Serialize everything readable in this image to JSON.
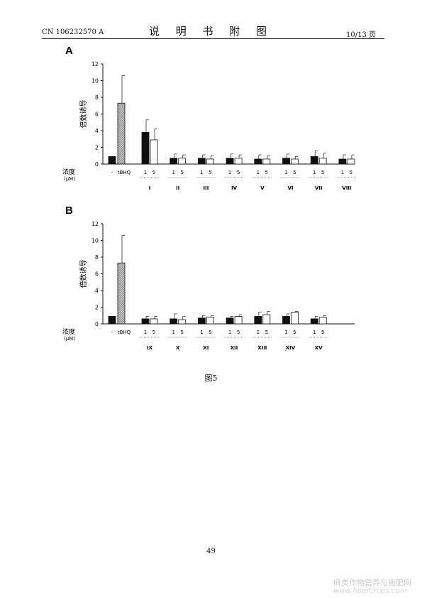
{
  "header": {
    "doc_number": "CN 106232570 A",
    "title": "说 明 书 附 图",
    "page_of": "10/13 页"
  },
  "figure_caption": "图5",
  "page_number": "49",
  "watermark": {
    "line1": "麻类作物营养与施肥网",
    "line2": "www.fiberCrops.com"
  },
  "colors": {
    "control": "#111111",
    "tbhq": "#bdbdbd",
    "dose1": "#111111",
    "dose5": "#ffffff"
  },
  "chart_data": [
    {
      "panel_label": "A",
      "type": "bar",
      "ylabel": "倍数诱导",
      "xlabel": "浓度",
      "xlabel_unit": "(μM)",
      "ylim": [
        0,
        12
      ],
      "yticks": [
        0,
        2,
        4,
        6,
        8,
        10,
        12
      ],
      "controls": [
        {
          "label": "-",
          "value": 0.9,
          "error": 0
        },
        {
          "label": "tBHQ",
          "value": 7.3,
          "error": 3.3
        }
      ],
      "dose_labels": [
        "1",
        "5"
      ],
      "groups": [
        {
          "label": "I",
          "values": [
            3.8,
            2.9
          ],
          "errors": [
            1.5,
            1.3
          ]
        },
        {
          "label": "II",
          "values": [
            0.7,
            0.7
          ],
          "errors": [
            0.5,
            0.4
          ]
        },
        {
          "label": "III",
          "values": [
            0.7,
            0.6
          ],
          "errors": [
            0.4,
            0.4
          ]
        },
        {
          "label": "IV",
          "values": [
            0.7,
            0.7
          ],
          "errors": [
            0.5,
            0.4
          ]
        },
        {
          "label": "V",
          "values": [
            0.6,
            0.6
          ],
          "errors": [
            0.5,
            0.4
          ]
        },
        {
          "label": "VI",
          "values": [
            0.7,
            0.6
          ],
          "errors": [
            0.5,
            0.3
          ]
        },
        {
          "label": "VII",
          "values": [
            0.9,
            0.7
          ],
          "errors": [
            0.7,
            0.6
          ]
        },
        {
          "label": "VIII",
          "values": [
            0.6,
            0.6
          ],
          "errors": [
            0.5,
            0.5
          ]
        }
      ]
    },
    {
      "panel_label": "B",
      "type": "bar",
      "ylabel": "倍数诱导",
      "xlabel": "浓度",
      "xlabel_unit": "(μM)",
      "ylim": [
        0,
        12
      ],
      "yticks": [
        0,
        2,
        4,
        6,
        8,
        10,
        12
      ],
      "controls": [
        {
          "label": "-",
          "value": 0.9,
          "error": 0
        },
        {
          "label": "tBHQ",
          "value": 7.3,
          "error": 3.3
        }
      ],
      "dose_labels": [
        "1",
        "5"
      ],
      "groups": [
        {
          "label": "IX",
          "values": [
            0.6,
            0.6
          ],
          "errors": [
            0.3,
            0.3
          ]
        },
        {
          "label": "X",
          "values": [
            0.6,
            0.5
          ],
          "errors": [
            0.6,
            0.4
          ]
        },
        {
          "label": "XI",
          "values": [
            0.7,
            0.8
          ],
          "errors": [
            0.3,
            0.2
          ]
        },
        {
          "label": "XII",
          "values": [
            0.7,
            0.9
          ],
          "errors": [
            0.2,
            0.2
          ]
        },
        {
          "label": "XIII",
          "values": [
            0.9,
            1.1
          ],
          "errors": [
            0.5,
            0.4
          ]
        },
        {
          "label": "XIV",
          "values": [
            0.9,
            1.4
          ],
          "errors": [
            0.3,
            0.1
          ]
        },
        {
          "label": "XV",
          "values": [
            0.6,
            0.8
          ],
          "errors": [
            0.3,
            0.2
          ]
        }
      ]
    }
  ]
}
